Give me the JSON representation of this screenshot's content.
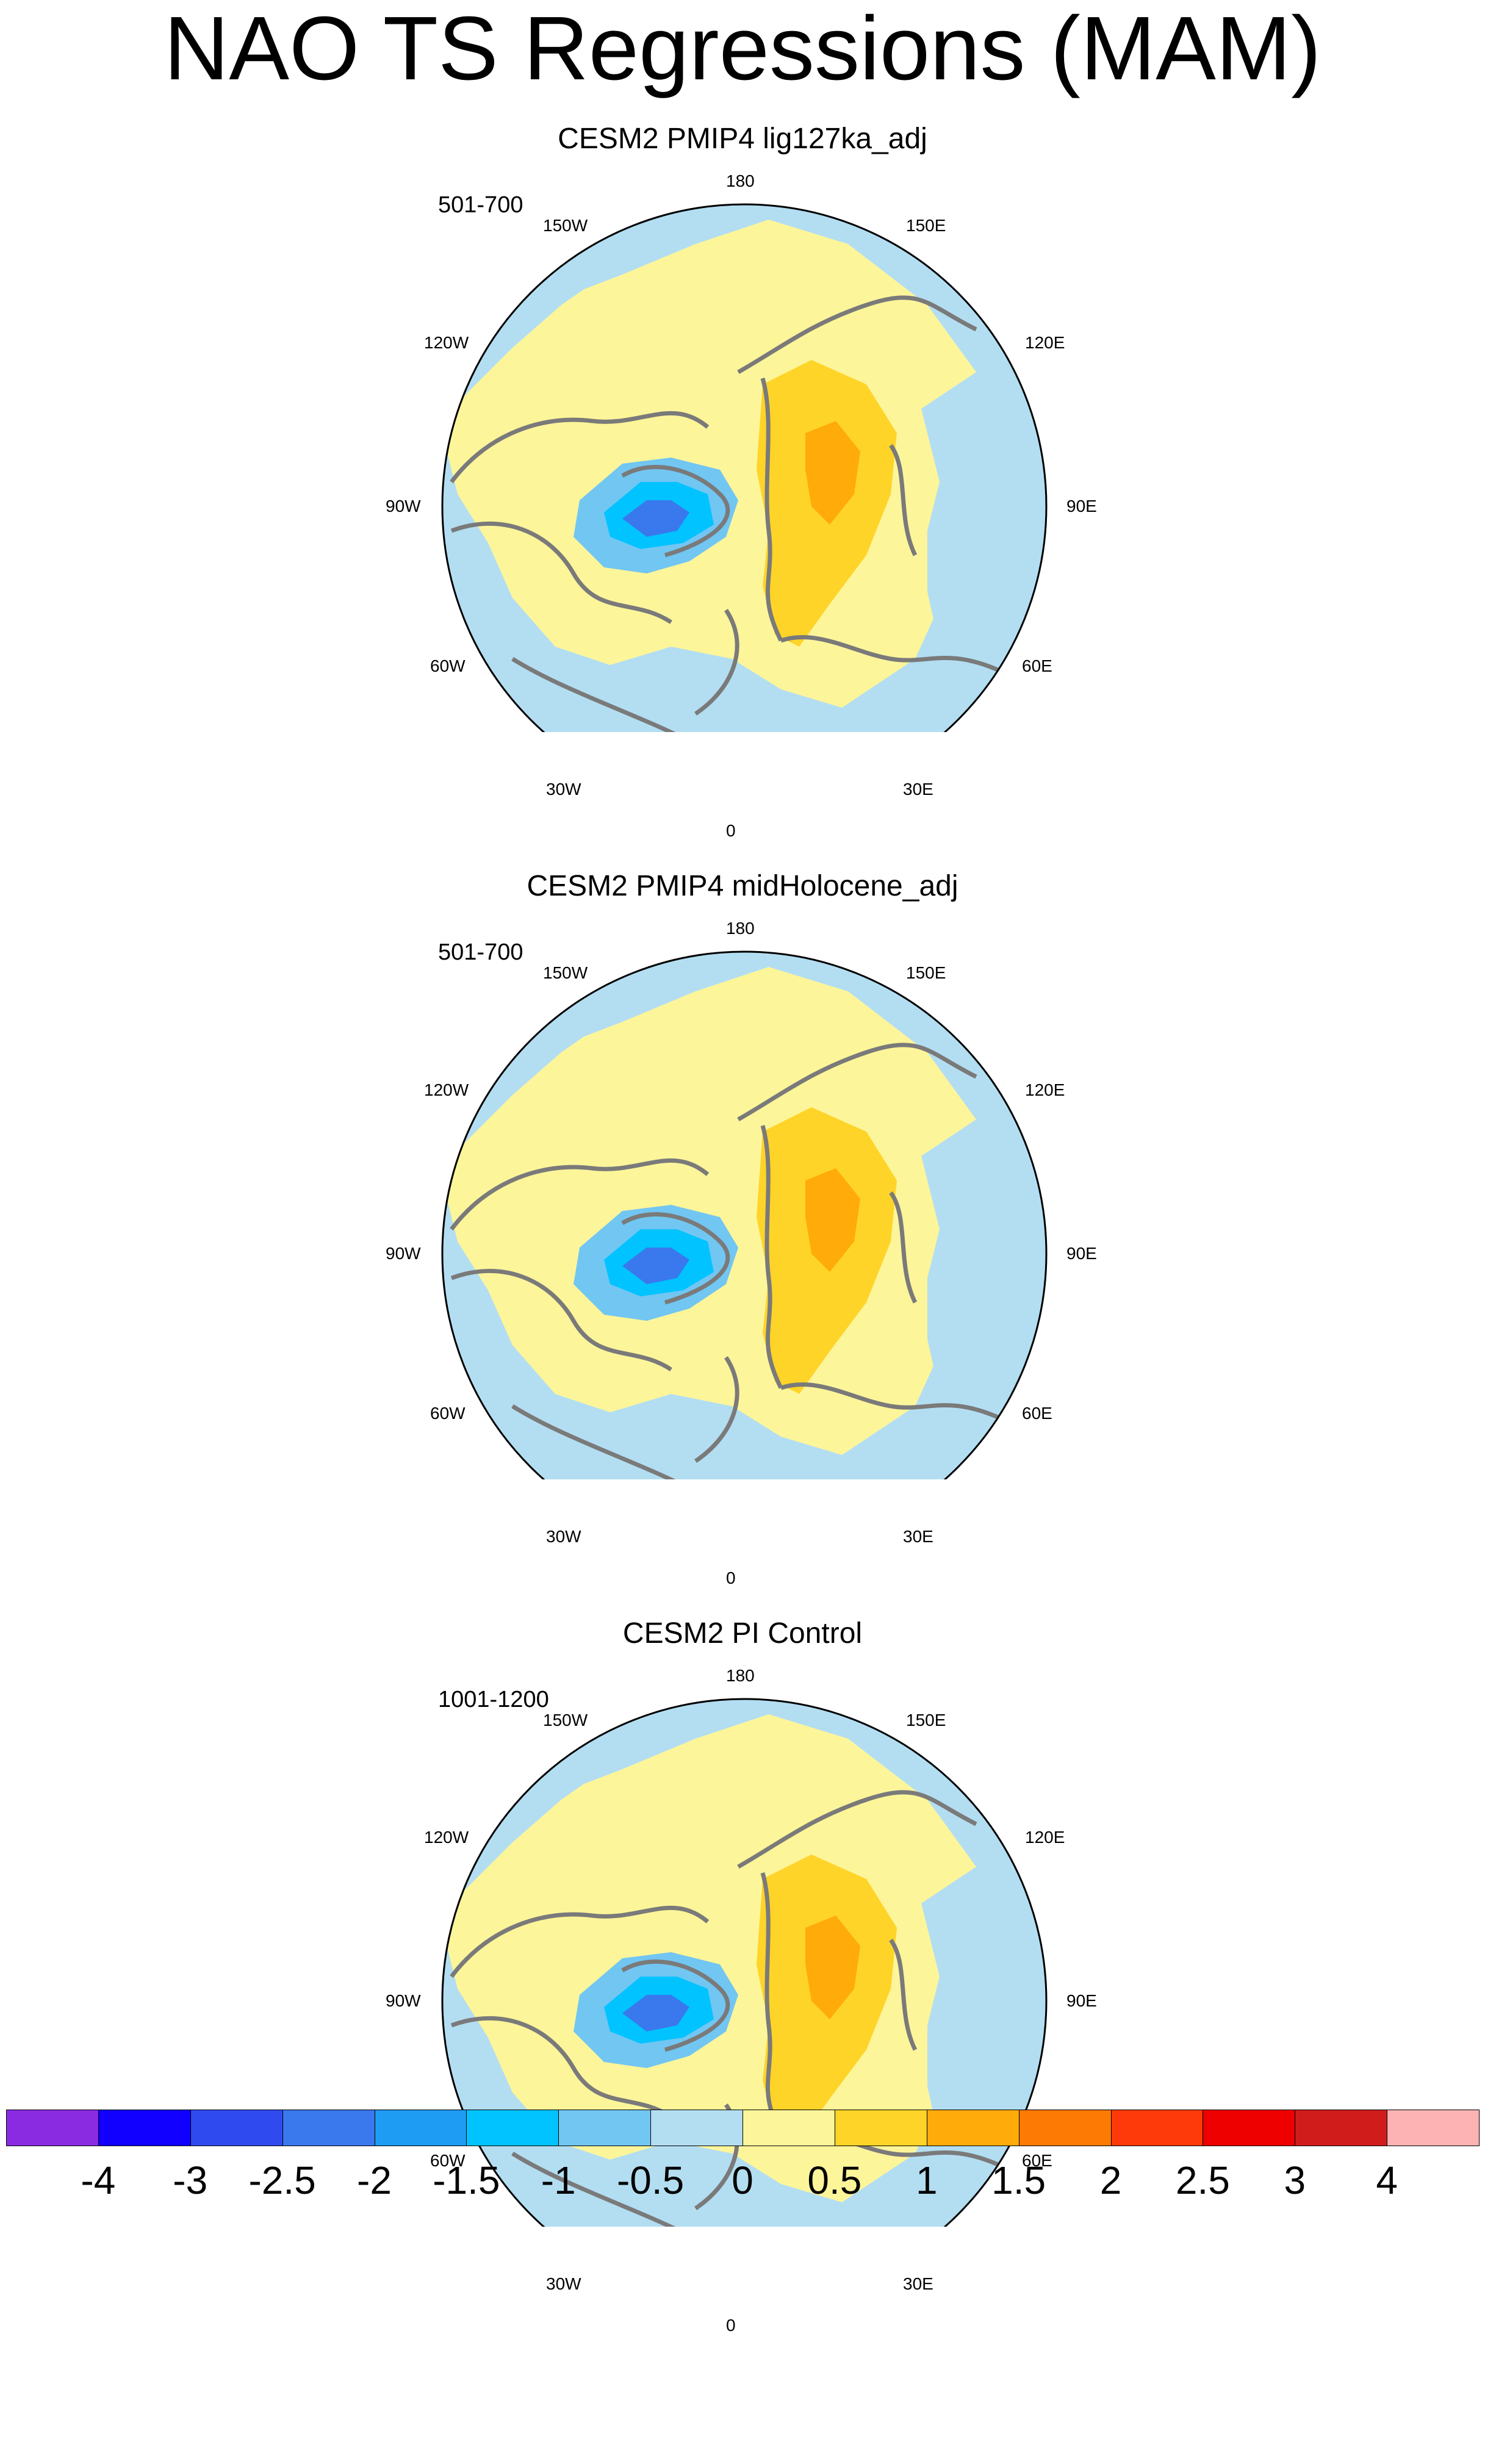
{
  "title": "NAO TS Regressions (MAM)",
  "panels": [
    {
      "title": "CESM2 PMIP4 lig127ka_adj",
      "years": "501-700"
    },
    {
      "title": "CESM2 PMIP4 midHolocene_adj",
      "years": "501-700"
    },
    {
      "title": "CESM2 PI Control",
      "years": "1001-1200"
    }
  ],
  "longitude_labels": [
    "180",
    "150E",
    "120E",
    "90E",
    "60E",
    "30E",
    "0",
    "30W",
    "60W",
    "90W",
    "120W",
    "150W"
  ],
  "colorbar": {
    "labels": [
      "-4",
      "-3",
      "-2.5",
      "-2",
      "-1.5",
      "-1",
      "-0.5",
      "0",
      "0.5",
      "1",
      "1.5",
      "2",
      "2.5",
      "3",
      "4"
    ],
    "colors": [
      "#8a2be2",
      "#1100ff",
      "#2f4bf0",
      "#3a78ee",
      "#1e9bf2",
      "#00c3ff",
      "#72c6f2",
      "#b3def2",
      "#fdf59a",
      "#ffd428",
      "#ffab0a",
      "#fd7a05",
      "#ff3a0a",
      "#ee0000",
      "#d11c1c",
      "#fdb3b3"
    ]
  },
  "colors": {
    "coastline": "#7a7a7a",
    "background": "#ffffff"
  }
}
